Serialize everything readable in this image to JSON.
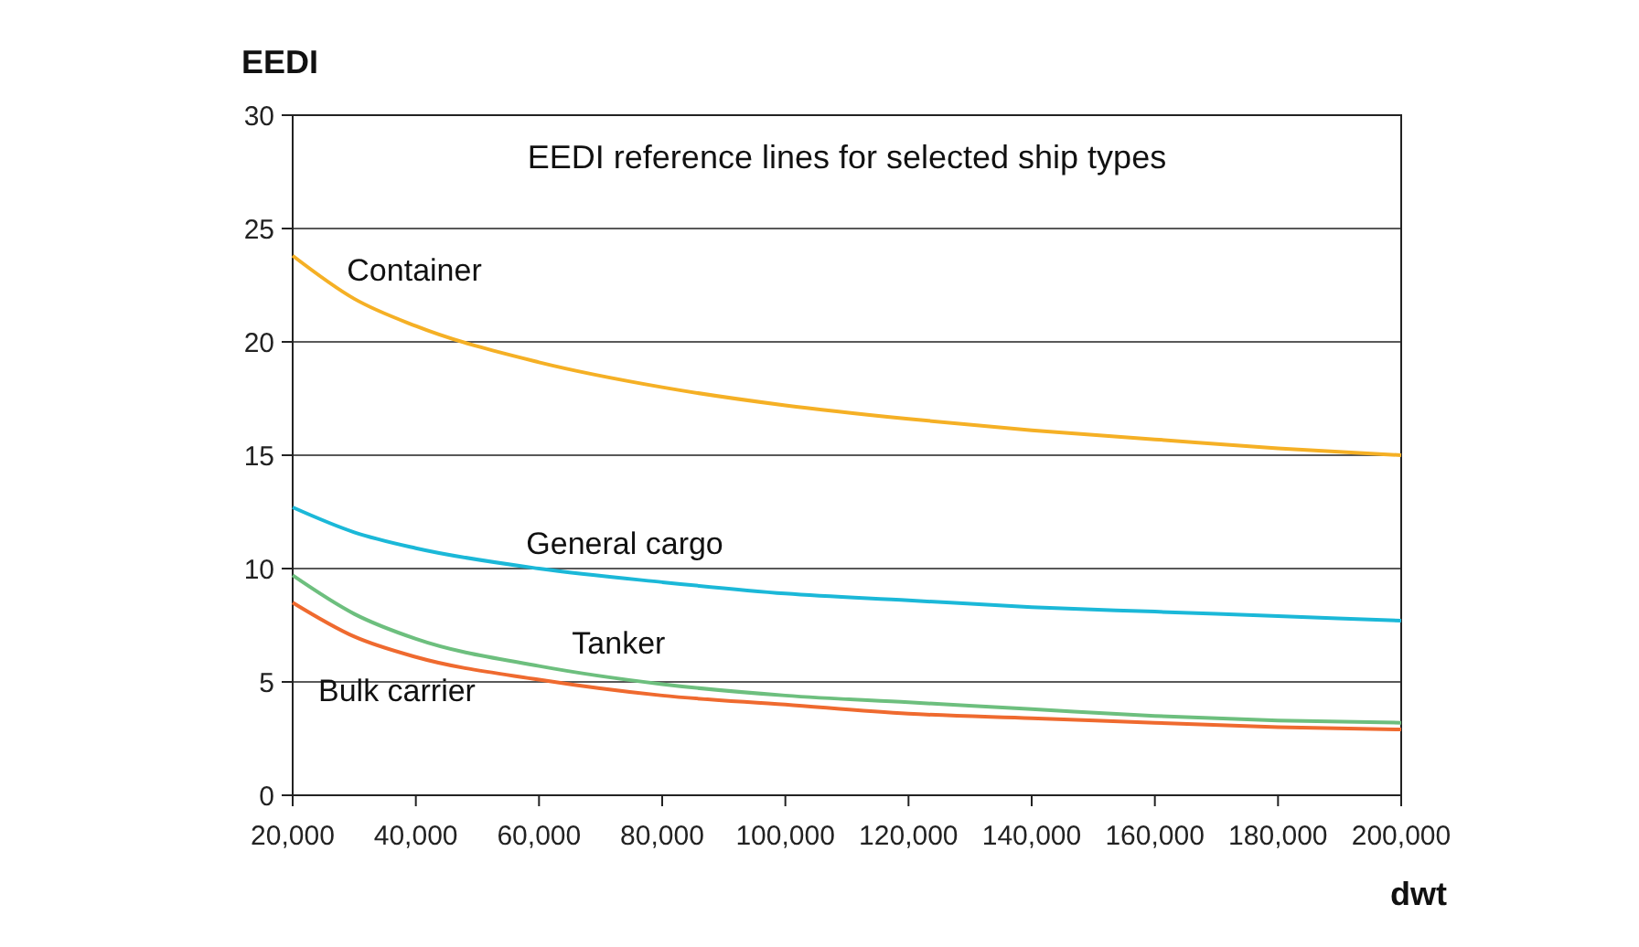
{
  "chart_data": {
    "type": "line",
    "title": "EEDI reference lines for selected ship types",
    "xlabel": "dwt",
    "ylabel": "EEDI",
    "x": [
      20000,
      30000,
      40000,
      60000,
      80000,
      100000,
      120000,
      140000,
      160000,
      180000,
      200000
    ],
    "series": [
      {
        "name": "Container",
        "color": "#f5b025",
        "values": [
          23.8,
          21.9,
          20.7,
          19.1,
          18.0,
          17.2,
          16.6,
          16.1,
          15.7,
          15.3,
          15.0
        ]
      },
      {
        "name": "General cargo",
        "color": "#1bb8d8",
        "values": [
          12.7,
          11.6,
          10.9,
          10.0,
          9.4,
          8.9,
          8.6,
          8.3,
          8.1,
          7.9,
          7.7
        ]
      },
      {
        "name": "Tanker",
        "color": "#6dbf7e",
        "values": [
          9.7,
          8.0,
          6.9,
          5.7,
          4.9,
          4.4,
          4.1,
          3.8,
          3.5,
          3.3,
          3.2
        ]
      },
      {
        "name": "Bulk carrier",
        "color": "#ef6a2f",
        "values": [
          8.5,
          7.0,
          6.1,
          5.1,
          4.4,
          4.0,
          3.6,
          3.4,
          3.2,
          3.0,
          2.9
        ]
      }
    ],
    "xlim": [
      20000,
      200000
    ],
    "xticks": [
      {
        "value": 20000,
        "label": "20,000"
      },
      {
        "value": 40000,
        "label": "40,000"
      },
      {
        "value": 60000,
        "label": "60,000"
      },
      {
        "value": 80000,
        "label": "80,000"
      },
      {
        "value": 100000,
        "label": "100,000"
      },
      {
        "value": 120000,
        "label": "120,000"
      },
      {
        "value": 140000,
        "label": "140,000"
      },
      {
        "value": 160000,
        "label": "160,000"
      },
      {
        "value": 180000,
        "label": "180,000"
      },
      {
        "value": 200000,
        "label": "200,000"
      }
    ],
    "ylim": [
      0,
      30
    ],
    "yticks": [
      0,
      5,
      10,
      15,
      20,
      25,
      30
    ],
    "grid": "y",
    "marker": "none",
    "line_style": "solid"
  }
}
